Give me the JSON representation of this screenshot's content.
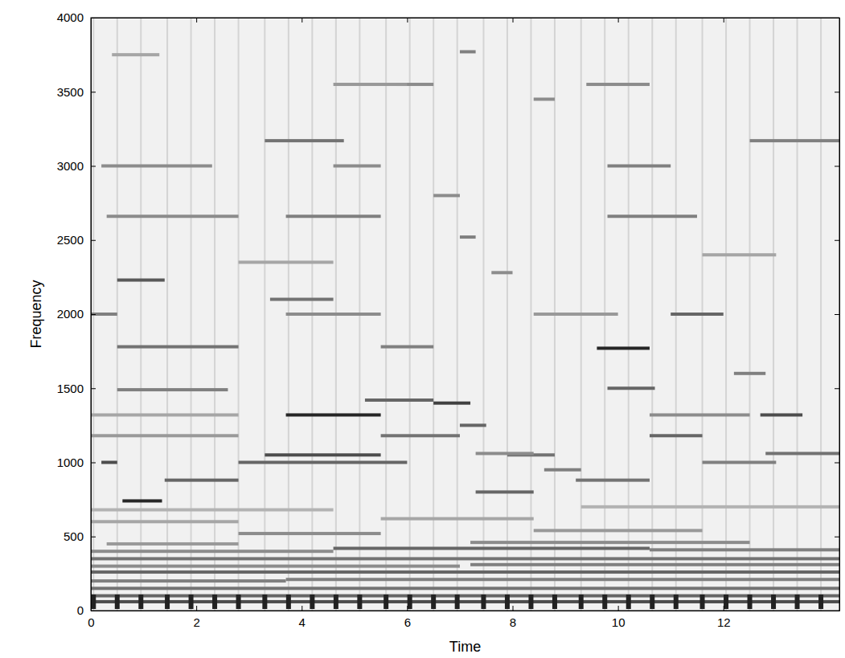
{
  "chart_data": {
    "type": "spectrogram",
    "x_label": "Time",
    "y_label": "Frequency",
    "xlim": [
      0,
      14.2
    ],
    "ylim": [
      0,
      4000
    ],
    "xticks": [
      0,
      2,
      4,
      6,
      8,
      10,
      12
    ],
    "yticks": [
      0,
      500,
      1000,
      1500,
      2000,
      2500,
      3000,
      3500,
      4000
    ],
    "zlim": [
      0,
      1
    ],
    "onsets": [
      0.05,
      0.5,
      0.95,
      1.45,
      1.9,
      2.35,
      2.8,
      3.3,
      3.75,
      4.2,
      4.65,
      5.1,
      5.6,
      6.05,
      6.5,
      6.95,
      7.45,
      7.9,
      8.35,
      8.8,
      9.3,
      9.75,
      10.2,
      10.65,
      11.1,
      11.6,
      12.05,
      12.5,
      12.95,
      13.4,
      13.85
    ],
    "t_start": [
      0,
      0,
      0,
      0,
      3.7,
      0,
      0,
      7.2,
      0,
      0,
      4.6,
      10.6,
      0.3,
      7.2,
      2.8,
      8.4,
      0,
      5.5,
      0,
      9.3,
      0.2,
      0.6,
      1.4,
      0.5,
      0.5,
      0.5,
      0,
      0.3,
      0.2,
      0.4,
      0,
      0,
      2.8,
      3.3,
      3.7,
      3.4,
      3.3,
      3.7,
      3.7,
      4.6,
      5.2,
      5.5,
      5.5,
      5.8,
      6.5,
      6.5,
      7.0,
      7.0,
      7.0,
      7.3,
      7.9,
      8.6,
      9.2,
      9.6,
      9.8,
      9.8,
      9.8,
      9.4,
      10.6,
      11.0,
      12.7,
      12.8,
      12.5,
      12.2,
      7.6,
      8.4,
      11.6,
      10.6,
      8.4,
      7.3,
      11.6,
      4.6,
      2.8
    ],
    "t_end": [
      14.2,
      14.2,
      14.2,
      3.7,
      14.2,
      14.2,
      7.0,
      14.2,
      14.2,
      4.6,
      10.6,
      14.2,
      2.8,
      12.5,
      5.5,
      11.6,
      2.8,
      8.4,
      4.6,
      14.2,
      0.5,
      1.35,
      2.8,
      1.4,
      2.8,
      2.6,
      0.5,
      2.8,
      2.3,
      1.3,
      2.8,
      2.8,
      6.0,
      5.5,
      5.5,
      4.6,
      4.8,
      5.5,
      5.5,
      5.5,
      6.5,
      7.0,
      6.5,
      6.5,
      7.0,
      7.2,
      7.5,
      7.3,
      7.3,
      8.4,
      8.8,
      9.3,
      10.6,
      10.6,
      10.7,
      11.5,
      11.0,
      10.6,
      11.6,
      12.0,
      13.5,
      14.2,
      14.2,
      12.8,
      8.0,
      8.8,
      13.0,
      12.5,
      10.0,
      8.4,
      13.0,
      6.0,
      4.6
    ],
    "frequency": [
      60,
      100,
      150,
      200,
      210,
      260,
      300,
      310,
      350,
      400,
      420,
      410,
      450,
      460,
      520,
      540,
      600,
      620,
      680,
      700,
      1000,
      740,
      880,
      2230,
      1780,
      1490,
      2000,
      2660,
      3000,
      3750,
      1180,
      1320,
      1000,
      1050,
      1320,
      2100,
      3170,
      2660,
      2000,
      3000,
      1420,
      1180,
      1780,
      3550,
      2800,
      1400,
      1250,
      2520,
      3770,
      800,
      1050,
      950,
      880,
      1770,
      1500,
      2660,
      3000,
      3550,
      1180,
      2000,
      1320,
      1060,
      3170,
      1600,
      2280,
      3450,
      1000,
      1320,
      2000,
      1060,
      2400,
      3550,
      2350
    ],
    "level": [
      0.7,
      0.6,
      0.55,
      0.5,
      0.5,
      0.6,
      0.45,
      0.5,
      0.55,
      0.45,
      0.6,
      0.5,
      0.4,
      0.45,
      0.45,
      0.4,
      0.35,
      0.35,
      0.3,
      0.3,
      0.7,
      0.85,
      0.6,
      0.65,
      0.55,
      0.5,
      0.5,
      0.45,
      0.45,
      0.35,
      0.4,
      0.35,
      0.6,
      0.7,
      0.85,
      0.55,
      0.55,
      0.5,
      0.45,
      0.45,
      0.6,
      0.55,
      0.5,
      0.45,
      0.45,
      0.75,
      0.6,
      0.5,
      0.5,
      0.6,
      0.55,
      0.5,
      0.55,
      0.85,
      0.6,
      0.5,
      0.5,
      0.45,
      0.6,
      0.6,
      0.7,
      0.55,
      0.5,
      0.5,
      0.45,
      0.45,
      0.5,
      0.45,
      0.4,
      0.45,
      0.35,
      0.4,
      0.35
    ]
  }
}
